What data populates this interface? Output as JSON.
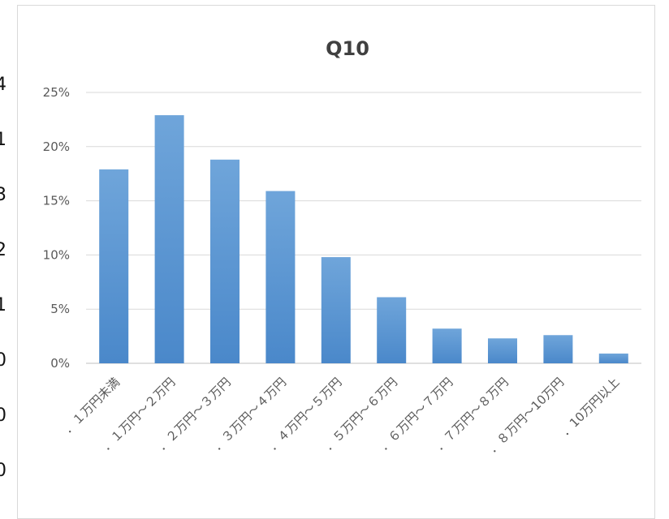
{
  "background_ticks": [
    "4",
    "1",
    "3",
    "2",
    "1",
    "0",
    "0",
    "0"
  ],
  "chart_data": {
    "type": "bar",
    "title": "Q10",
    "xlabel": "",
    "ylabel": "",
    "ylim": [
      0,
      0.25
    ],
    "yticks": [
      "0%",
      "5%",
      "10%",
      "15%",
      "20%",
      "25%"
    ],
    "grid": true,
    "legend": "none",
    "bar_color": "#5b9bd5",
    "categories": [
      "．１万円未満",
      "．１万円～２万円",
      "．２万円～３万円",
      "．３万円～４万円",
      "．４万円～５万円",
      "．５万円～６万円",
      "．６万円～７万円",
      "．７万円～８万円",
      "．８万円～10万円",
      "．10万円以上"
    ],
    "values": [
      0.179,
      0.229,
      0.188,
      0.159,
      0.098,
      0.061,
      0.032,
      0.023,
      0.026,
      0.009
    ]
  }
}
